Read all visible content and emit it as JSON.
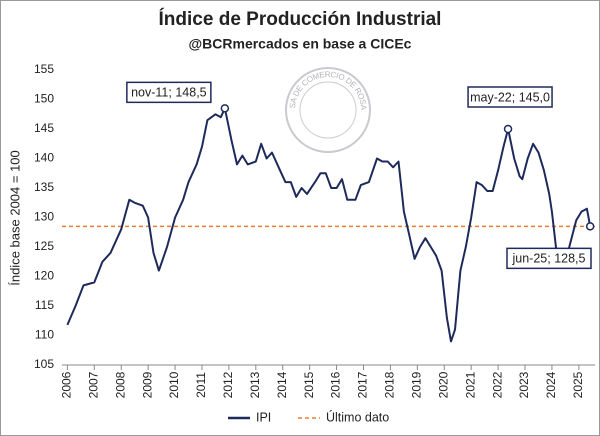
{
  "chart_data": {
    "type": "line",
    "title": "Índice de Producción Industrial",
    "subtitle": "@BCRmercados en base a CICEc",
    "y_label": "Índice base 2004 = 100",
    "watermark": "BOLSA DE COMERCIO DE ROSARIO",
    "xlim": [
      2005.8,
      2025.6
    ],
    "xticks": [
      2006,
      2007,
      2008,
      2009,
      2010,
      2011,
      2012,
      2013,
      2014,
      2015,
      2016,
      2017,
      2018,
      2019,
      2020,
      2021,
      2022,
      2023,
      2024,
      2025
    ],
    "ylim": [
      105,
      155
    ],
    "yticks": [
      105,
      110,
      115,
      120,
      125,
      130,
      135,
      140,
      145,
      150,
      155
    ],
    "grid": false,
    "legend": "bottom",
    "x": [
      2006.0,
      2006.3,
      2006.6,
      2007.0,
      2007.3,
      2007.6,
      2008.0,
      2008.3,
      2008.5,
      2008.8,
      2009.0,
      2009.2,
      2009.4,
      2009.7,
      2010.0,
      2010.3,
      2010.5,
      2010.8,
      2011.0,
      2011.2,
      2011.5,
      2011.7,
      2011.85,
      2012.1,
      2012.3,
      2012.5,
      2012.7,
      2013.0,
      2013.2,
      2013.4,
      2013.6,
      2013.9,
      2014.1,
      2014.3,
      2014.5,
      2014.7,
      2014.9,
      2015.2,
      2015.4,
      2015.6,
      2015.8,
      2016.0,
      2016.2,
      2016.4,
      2016.7,
      2016.9,
      2017.2,
      2017.5,
      2017.7,
      2017.9,
      2018.1,
      2018.3,
      2018.5,
      2018.7,
      2018.9,
      2019.1,
      2019.3,
      2019.5,
      2019.7,
      2019.9,
      2020.1,
      2020.25,
      2020.4,
      2020.6,
      2020.8,
      2021.0,
      2021.2,
      2021.4,
      2021.6,
      2021.8,
      2022.0,
      2022.2,
      2022.37,
      2022.6,
      2022.8,
      2022.9,
      2023.1,
      2023.3,
      2023.5,
      2023.7,
      2023.9,
      2024.0,
      2024.2,
      2024.35,
      2024.5,
      2024.7,
      2024.9,
      2025.1,
      2025.3,
      2025.42
    ],
    "series": [
      {
        "name": "IPI",
        "color": "#1f2a5c",
        "values": [
          111.8,
          115,
          118.5,
          119,
          122.5,
          124,
          128,
          133,
          132.5,
          132,
          130,
          124,
          121,
          125,
          130,
          133,
          136,
          139,
          142,
          146.5,
          147.5,
          147,
          148.5,
          143,
          139,
          140.5,
          139,
          139.5,
          142.5,
          140,
          141,
          138,
          136,
          136,
          133.5,
          135,
          134,
          136,
          137.5,
          137.5,
          135,
          135,
          136.5,
          133,
          133,
          135.5,
          136,
          140,
          139.5,
          139.5,
          138.5,
          139.5,
          131,
          127,
          123,
          125,
          126.5,
          125,
          123.5,
          121,
          113,
          109,
          111,
          121,
          125,
          130,
          136,
          135.5,
          134.5,
          134.5,
          138,
          142,
          145,
          140,
          137,
          136.5,
          140,
          142.5,
          141,
          138,
          134,
          131,
          123,
          121.5,
          122.5,
          126,
          129.5,
          131,
          131.5,
          128.5
        ]
      }
    ],
    "reference_line": {
      "name": "Último dato",
      "value": 128.5,
      "color": "#ed7d31"
    },
    "annotations": [
      {
        "text": "nov-11; 148,5",
        "x": 2011.85,
        "y": 148.5
      },
      {
        "text": "may-22; 145,0",
        "x": 2022.37,
        "y": 145
      },
      {
        "text": "jun-25; 128,5",
        "x": 2025.42,
        "y": 128.5
      }
    ]
  }
}
